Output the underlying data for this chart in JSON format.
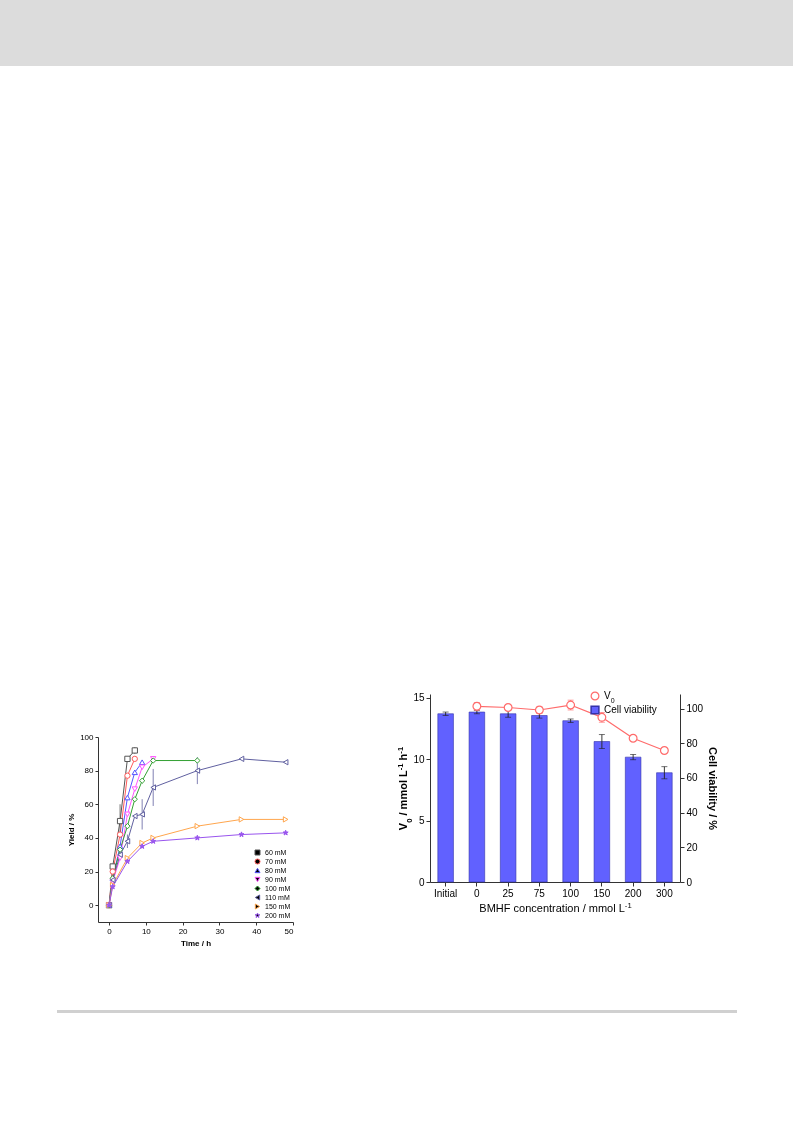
{
  "chart_data": [
    {
      "type": "line",
      "xlabel": "Time / h",
      "ylabel": "Yield / %",
      "xlim": [
        -3,
        50
      ],
      "ylim": [
        -10,
        100
      ],
      "xticks": [
        0,
        10,
        20,
        30,
        40,
        50
      ],
      "yticks": [
        0,
        20,
        40,
        60,
        80,
        100
      ],
      "legend": "bottom right",
      "line_style": "solid",
      "series": [
        {
          "name": "60 mM",
          "color": "#555555",
          "marker": "square",
          "x": [
            0,
            1,
            3,
            5,
            7
          ],
          "values": [
            0,
            23,
            50,
            87,
            92
          ],
          "errors": [
            null,
            null,
            10,
            null,
            2
          ]
        },
        {
          "name": "70 mM",
          "color": "#ff5a5a",
          "marker": "circle",
          "x": [
            0,
            1,
            3,
            5,
            7
          ],
          "values": [
            0,
            20,
            42,
            77,
            87
          ]
        },
        {
          "name": "80 mM",
          "color": "#5555ff",
          "marker": "triangle",
          "x": [
            0,
            1,
            3,
            5,
            7,
            9
          ],
          "values": [
            0,
            16,
            35,
            64,
            79,
            85
          ]
        },
        {
          "name": "90 mM",
          "color": "#ff55ff",
          "marker": "triangle-down",
          "x": [
            0,
            1,
            3,
            5,
            7,
            9,
            12
          ],
          "values": [
            0,
            14,
            28,
            54,
            69,
            82,
            87
          ]
        },
        {
          "name": "100 mM",
          "color": "#33a033",
          "marker": "diamond",
          "x": [
            0,
            1,
            3,
            5,
            7,
            9,
            12,
            24
          ],
          "values": [
            0,
            16,
            33,
            47,
            63,
            74,
            86,
            86
          ]
        },
        {
          "name": "110 mM",
          "color": "#6060a0",
          "marker": "triangle-left",
          "x": [
            0,
            1,
            3,
            5,
            7,
            9,
            12,
            24,
            36,
            48
          ],
          "values": [
            0,
            15,
            30,
            38,
            53,
            54,
            70,
            80,
            87,
            85
          ],
          "errors": [
            null,
            null,
            null,
            4,
            null,
            9,
            11,
            8,
            null,
            null
          ]
        },
        {
          "name": "150 mM",
          "color": "#ffa64d",
          "marker": "triangle-right",
          "x": [
            0,
            1,
            5,
            9,
            12,
            24,
            36,
            48
          ],
          "values": [
            0,
            12,
            28,
            37,
            40,
            47,
            51,
            51
          ]
        },
        {
          "name": "200 mM",
          "color": "#9955ee",
          "marker": "star",
          "x": [
            0,
            1,
            5,
            9,
            12,
            24,
            36,
            48
          ],
          "values": [
            0,
            11,
            26,
            35,
            38,
            40,
            42,
            43
          ]
        }
      ]
    },
    {
      "type": "bar",
      "xlabel": "BMHF concentration / mmol L$^{-1}$",
      "ylabel": "V$_{0}$ / mmol L$^{-1}$ h$^{-1}$",
      "y2label": "Cell viability / %",
      "ylim": [
        0,
        15.3
      ],
      "yticks": [
        0,
        5,
        10,
        15
      ],
      "y2lim": [
        0,
        108.4
      ],
      "y2ticks": [
        0,
        20,
        40,
        60,
        80,
        100
      ],
      "legend": "top right",
      "categories": [
        "Initial",
        "0",
        "25",
        "75",
        "100",
        "150",
        "200",
        "300"
      ],
      "series": [
        {
          "name": "V$_{0}$",
          "type": "line",
          "marker": "circle",
          "color": "#ff6b6b",
          "values": [
            null,
            14.3,
            14.2,
            14.0,
            14.4,
            13.4,
            11.7,
            10.7
          ],
          "errors": [
            null,
            0.3,
            0.1,
            0.25,
            0.4,
            0.4,
            0.1,
            0.1
          ]
        },
        {
          "name": "Cell viability",
          "type": "bar",
          "axis": "y2",
          "color": "#6161ff",
          "values": [
            97,
            98,
            97,
            96,
            93,
            81,
            72,
            63
          ],
          "errors": [
            1,
            1,
            2,
            1.5,
            1,
            4,
            1.5,
            3.5
          ]
        }
      ]
    }
  ]
}
